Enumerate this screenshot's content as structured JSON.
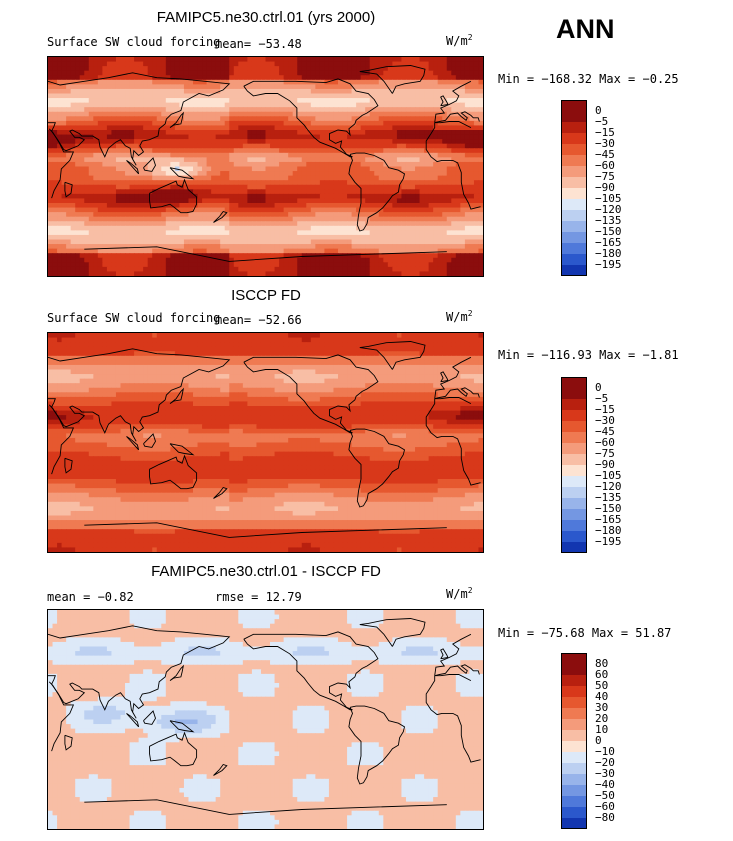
{
  "season": "ANN",
  "colors": {
    "warm": [
      "#8b0d0d",
      "#b8200f",
      "#d8381a",
      "#e6582f",
      "#ef7a52",
      "#f49b7b",
      "#f8bea5",
      "#fde3d2"
    ],
    "cool": [
      "#dde9f8",
      "#bcd0f1",
      "#98b4ea",
      "#7497e2",
      "#4f79da",
      "#2b58cc",
      "#1236b0",
      "#02127a"
    ],
    "diff_warm": [
      "#8b0d0d",
      "#b8200f",
      "#d8381a",
      "#e6582f",
      "#ef7a52",
      "#f49b7b",
      "#f8bea5",
      "#fde3d2"
    ],
    "diff_cool": [
      "#dde9f8",
      "#bcd0f1",
      "#98b4ea",
      "#7497e2",
      "#4f79da",
      "#2b58cc",
      "#1236b0",
      "#02127a"
    ],
    "ocean_base": "#f4a082",
    "land_line": "#000000"
  },
  "panels": [
    {
      "title": "FAMIPC5.ne30.ctrl.01 (yrs 2000)",
      "variable": "Surface SW cloud forcing",
      "mean_text": "mean=  −53.48",
      "units": "W/m",
      "units_sup": "2",
      "minmax": "Min = −168.32  Max =  −0.25",
      "colorbar_levels": [
        "0",
        "−5",
        "−15",
        "−30",
        "−45",
        "−60",
        "−75",
        "−90",
        "−105",
        "−120",
        "−135",
        "−150",
        "−165",
        "−180",
        "−195"
      ],
      "map_style": "model"
    },
    {
      "title": "ISCCP FD",
      "variable": "Surface SW cloud forcing",
      "mean_text": "mean=  −52.66",
      "units": "W/m",
      "units_sup": "2",
      "minmax": "Min = −116.93  Max =  −1.81",
      "colorbar_levels": [
        "0",
        "−5",
        "−15",
        "−30",
        "−45",
        "−60",
        "−75",
        "−90",
        "−105",
        "−120",
        "−135",
        "−150",
        "−165",
        "−180",
        "−195"
      ],
      "map_style": "obs"
    },
    {
      "title": "FAMIPC5.ne30.ctrl.01 - ISCCP FD",
      "variable": "",
      "mean_text": "mean =  −0.82",
      "rmse_text": "rmse =  12.79",
      "units": "W/m",
      "units_sup": "2",
      "minmax": "Min = −75.68  Max =  51.87",
      "colorbar_levels": [
        "80",
        "60",
        "50",
        "40",
        "30",
        "20",
        "10",
        "0",
        "−10",
        "−20",
        "−30",
        "−40",
        "−50",
        "−60",
        "−80"
      ],
      "map_style": "diff"
    }
  ]
}
